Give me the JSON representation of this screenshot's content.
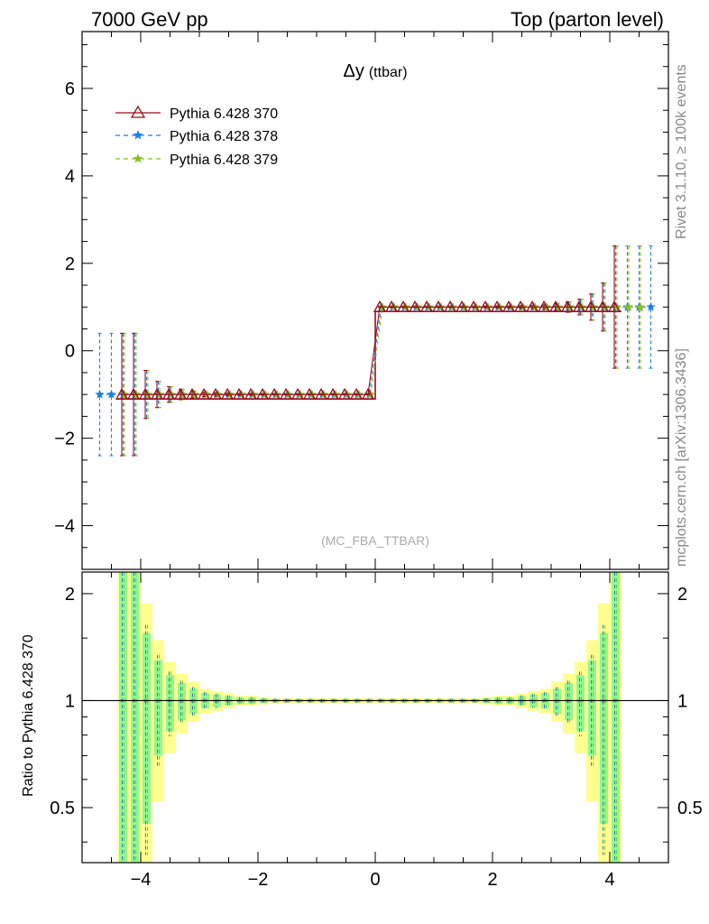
{
  "header": {
    "left": "7000 GeV pp",
    "right": "Top (parton level)"
  },
  "side_labels": {
    "rivet": "Rivet 3.1.10, ≥ 100k events",
    "mcplots": "mcplots.cern.ch [arXiv:1306.3436]"
  },
  "plot": {
    "title_main": "Δy",
    "title_sub": "(ttbar)",
    "analysis": "(MC_FBA_TTBAR)"
  },
  "legend": [
    {
      "label": "Pythia 6.428 370",
      "color": "#9c0a1e",
      "marker": "triangle-icon"
    },
    {
      "label": "Pythia 6.428 378",
      "color": "#1e7ee0",
      "marker": "star-icon"
    },
    {
      "label": "Pythia 6.428 379",
      "color": "#88c020",
      "marker": "star-icon"
    }
  ],
  "colors": {
    "band_inner": "#90f890",
    "band_outer": "#ffff90"
  },
  "chart_data": [
    {
      "type": "line",
      "title": "Δy (ttbar)",
      "xlim": [
        -5.0,
        5.0
      ],
      "ylim": [
        -5.0,
        7.3
      ],
      "yticks": [
        -4,
        -2,
        0,
        2,
        4,
        6
      ],
      "ytick_labels": [
        "−4",
        "−2",
        "0",
        "2",
        "4",
        "6"
      ],
      "bin_width": 0.2,
      "bins": {
        "lo": [
          -4.4,
          -4.2,
          -4.0,
          -3.8,
          -3.6,
          -3.4,
          -3.2,
          -3.0,
          -2.8,
          -2.6,
          -2.4,
          -2.2,
          -2.0,
          -1.8,
          -1.6,
          -1.4,
          -1.2,
          -1.0,
          -0.8,
          -0.6,
          -0.4,
          -0.2,
          0.0,
          0.2,
          0.4,
          0.6,
          0.8,
          1.0,
          1.2,
          1.4,
          1.6,
          1.8,
          2.0,
          2.2,
          2.4,
          2.6,
          2.8,
          3.0,
          3.2,
          3.4,
          3.6,
          3.8,
          4.0
        ],
        "err": [
          1.4,
          1.4,
          0.55,
          0.3,
          0.18,
          0.12,
          0.08,
          0.05,
          0.04,
          0.03,
          0.02,
          0.02,
          0.015,
          0.01,
          0.01,
          0.01,
          0.01,
          0.01,
          0.01,
          0.01,
          0.01,
          0.01,
          0.01,
          0.01,
          0.01,
          0.01,
          0.01,
          0.01,
          0.01,
          0.01,
          0.01,
          0.015,
          0.02,
          0.02,
          0.03,
          0.04,
          0.05,
          0.08,
          0.12,
          0.18,
          0.3,
          0.55,
          1.4
        ]
      },
      "series": [
        {
          "name": "Pythia 6.428 370",
          "x_from": -4.4,
          "x_to": 4.2,
          "values_negative_dy": -1.0,
          "values_positive_dy": 1.0
        },
        {
          "name": "Pythia 6.428 378",
          "x_from": -4.8,
          "x_to": 4.8,
          "values_negative_dy": -1.0,
          "values_positive_dy": 1.0
        },
        {
          "name": "Pythia 6.428 379",
          "x_from": -4.4,
          "x_to": 4.6,
          "values_negative_dy": -1.0,
          "values_positive_dy": 1.0
        }
      ]
    },
    {
      "type": "line",
      "ylabel": "Ratio to Pythia 6.428 370",
      "xlim": [
        -5.0,
        5.0
      ],
      "ylim": [
        0.35,
        2.3
      ],
      "yscale": "log",
      "yticks": [
        0.5,
        1,
        2
      ],
      "ytick_labels": [
        "0.5",
        "1",
        "2"
      ],
      "xticks": [
        -4,
        -2,
        0,
        2,
        4
      ],
      "xtick_labels": [
        "−4",
        "−2",
        "0",
        "2",
        "4"
      ],
      "reference_line": 1.0,
      "bands": {
        "inner": "statistical uncertainty",
        "outer": "total uncertainty"
      }
    }
  ]
}
